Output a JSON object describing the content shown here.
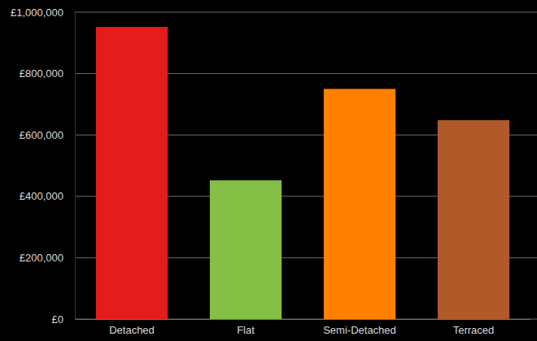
{
  "chart_data": {
    "type": "bar",
    "categories": [
      "Detached",
      "Flat",
      "Semi-Detached",
      "Terraced"
    ],
    "values": [
      952000,
      452000,
      750000,
      648000
    ],
    "colors": [
      "#e41c1c",
      "#85bf45",
      "#ff8000",
      "#b05a2a"
    ],
    "ylim": [
      0,
      1000000
    ],
    "yticks": [
      {
        "value": 0,
        "label": "£0"
      },
      {
        "value": 200000,
        "label": "£200,000"
      },
      {
        "value": 400000,
        "label": "£400,000"
      },
      {
        "value": 600000,
        "label": "£600,000"
      },
      {
        "value": 800000,
        "label": "£800,000"
      },
      {
        "value": 1000000,
        "label": "£1,000,000"
      }
    ],
    "grid": true
  }
}
